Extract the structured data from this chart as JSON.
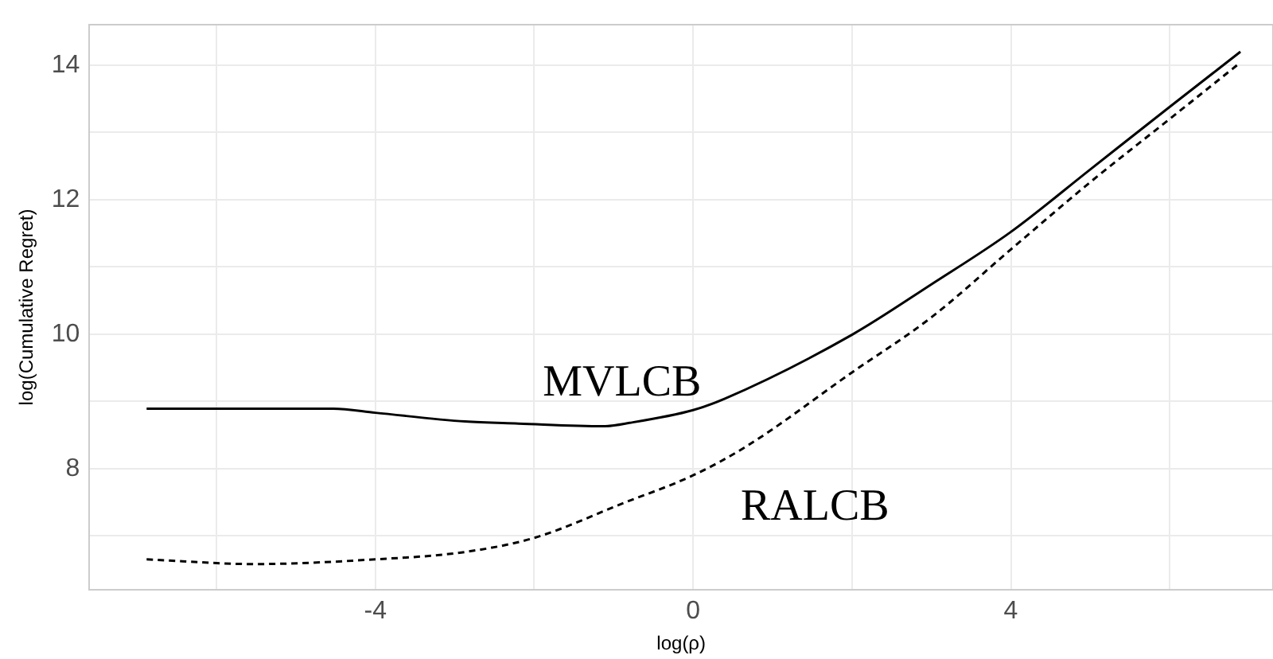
{
  "chart_data": {
    "type": "line",
    "xlabel": "log(ρ)",
    "ylabel": "log(Cumulative Regret)",
    "xlim": [
      -7.6,
      7.3
    ],
    "ylim": [
      6.2,
      14.6
    ],
    "xticks": [
      {
        "value": -6,
        "label": null
      },
      -4,
      {
        "value": -2,
        "label": null
      },
      0,
      {
        "value": 2,
        "label": null
      },
      4,
      {
        "value": 6,
        "label": null
      }
    ],
    "yticks": [
      {
        "value": 7,
        "label": null
      },
      8,
      {
        "value": 9,
        "label": null
      },
      10,
      {
        "value": 11,
        "label": null
      },
      12,
      {
        "value": 13,
        "label": null
      },
      14
    ],
    "grid": true,
    "legend": false,
    "marker": "none",
    "series": [
      {
        "name": "MVLCB",
        "color": "#000000",
        "line_style": "solid",
        "x": [
          -6.88,
          -4.53,
          -4,
          -2.87,
          -2.2,
          -1.13,
          -0.8,
          0,
          0.4,
          2,
          3,
          4,
          5,
          6,
          6.89
        ],
        "values": [
          8.89,
          8.89,
          8.83,
          8.7,
          8.67,
          8.63,
          8.68,
          8.87,
          9.04,
          9.99,
          10.74,
          11.52,
          12.45,
          13.38,
          14.2
        ]
      },
      {
        "name": "RALCB",
        "color": "#000000",
        "line_style": "dashed",
        "x": [
          -6.88,
          -5.53,
          -4,
          -2.87,
          -2,
          -0.87,
          0,
          0.67,
          2,
          3,
          4,
          5,
          6,
          6.89
        ],
        "values": [
          6.65,
          6.58,
          6.65,
          6.76,
          6.97,
          7.49,
          7.9,
          8.33,
          9.43,
          10.25,
          11.26,
          12.26,
          13.2,
          14.04
        ]
      }
    ]
  }
}
